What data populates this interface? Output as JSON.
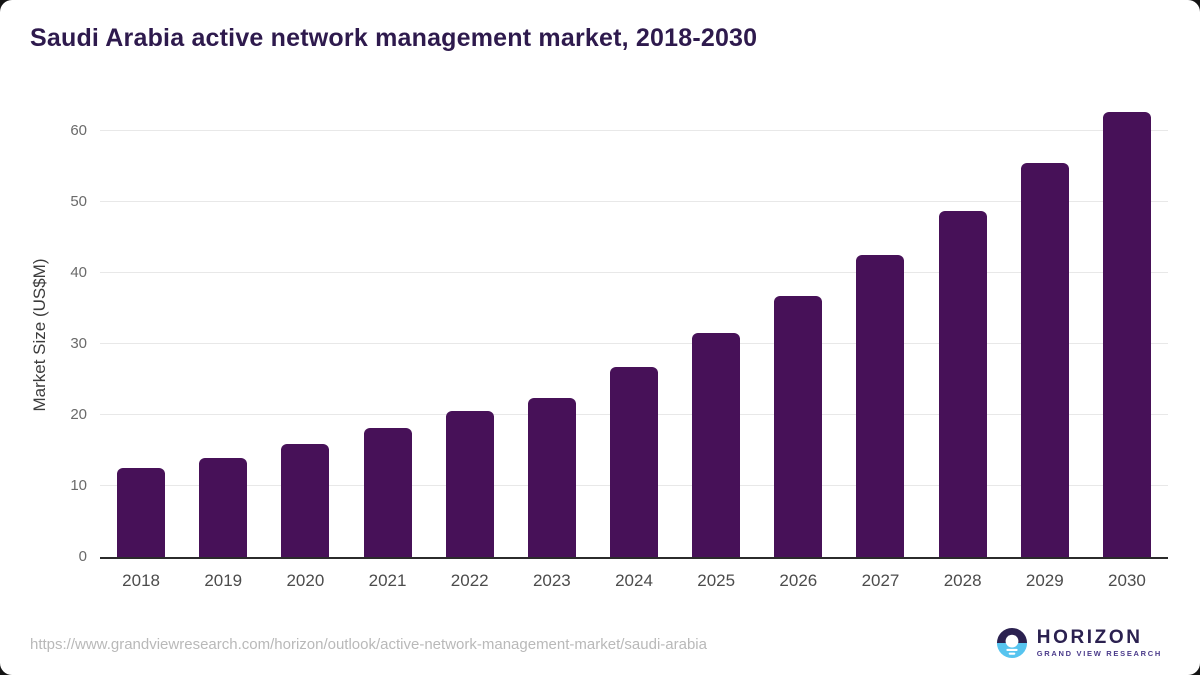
{
  "header": {
    "title": "Saudi Arabia active network management market, 2018-2030"
  },
  "footer": {
    "source_url": "https://www.grandviewresearch.com/horizon/outlook/active-network-management-market/saudi-arabia",
    "logo": {
      "wordmark": "HORIZON",
      "subtitle": "GRAND VIEW RESEARCH"
    }
  },
  "colors": {
    "bar": "#471158",
    "title_text": "#2e1a4d",
    "axis_line": "#2b2b2b",
    "gridline": "#e8e8e8",
    "logo_navy": "#2b2150",
    "logo_blue": "#57c4ef"
  },
  "chart_data": {
    "type": "bar",
    "title": "Saudi Arabia active network management market, 2018-2030",
    "categories": [
      "2018",
      "2019",
      "2020",
      "2021",
      "2022",
      "2023",
      "2024",
      "2025",
      "2026",
      "2027",
      "2028",
      "2029",
      "2030"
    ],
    "values": [
      12.5,
      14.0,
      15.9,
      18.1,
      20.5,
      22.4,
      26.7,
      31.5,
      36.7,
      42.5,
      48.7,
      55.5,
      62.6
    ],
    "xlabel": "",
    "ylabel": "Market Size (US$M)",
    "yticks": [
      0,
      10,
      20,
      30,
      40,
      50,
      60
    ],
    "ylim": [
      0,
      62.8
    ],
    "grid": true,
    "legend": false,
    "bar_color": "#471158"
  }
}
